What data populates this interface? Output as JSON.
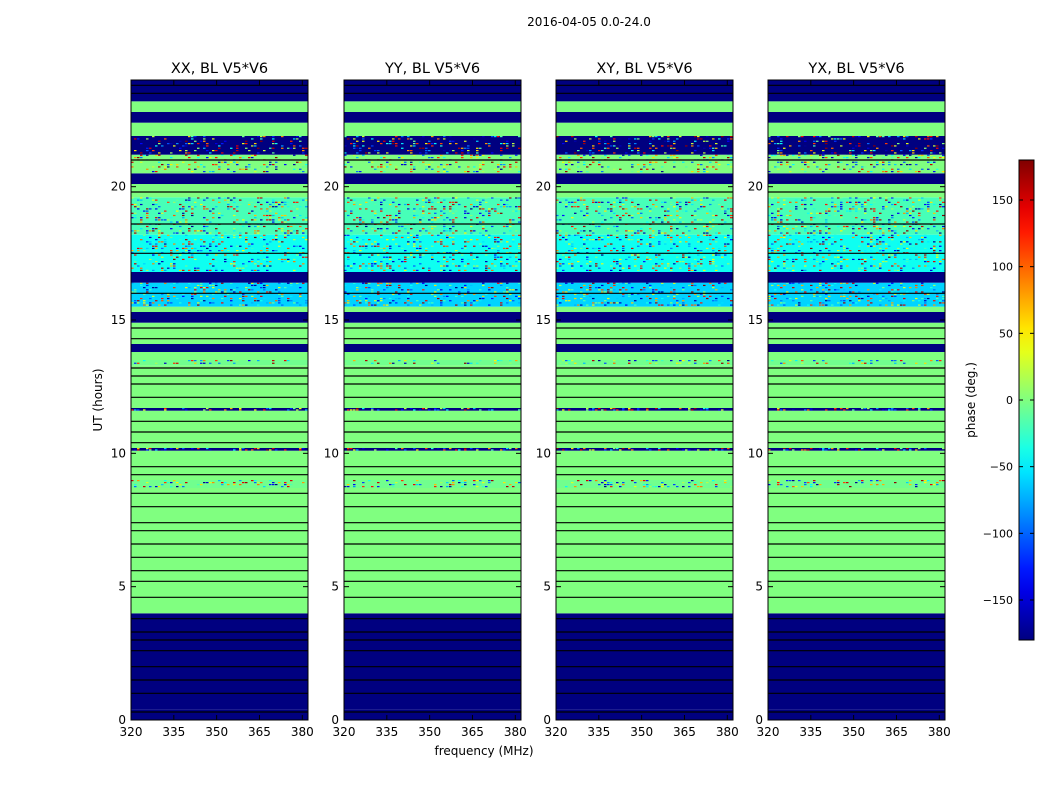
{
  "suptitle": "2016-04-05 0.0-24.0",
  "chart_data": {
    "type": "heatmap",
    "xlabel": "frequency (MHz)",
    "ylabel": "UT (hours)",
    "xlim": [
      320,
      382
    ],
    "ylim": [
      0,
      24
    ],
    "xticks": [
      320,
      335,
      350,
      365,
      380
    ],
    "yticks": [
      0,
      5,
      10,
      15,
      20
    ],
    "panels": [
      {
        "title": "XX, BL V5*V6"
      },
      {
        "title": "YY, BL V5*V6"
      },
      {
        "title": "XY, BL V5*V6"
      },
      {
        "title": "YX, BL V5*V6"
      }
    ],
    "colorbar": {
      "label": "phase (deg.)",
      "range": [
        -180,
        180
      ],
      "ticks": [
        -150,
        -100,
        -50,
        0,
        50,
        100,
        150
      ],
      "tick_labels": [
        "−150",
        "−100",
        "−50",
        "0",
        "50",
        "100",
        "150"
      ],
      "colormap": "jet"
    },
    "bands": [
      {
        "from": 0,
        "to": 0.4,
        "value": -180
      },
      {
        "from": 0.4,
        "to": 4.0,
        "value": -180
      },
      {
        "from": 4.0,
        "to": 8.7,
        "value": 0
      },
      {
        "from": 8.7,
        "to": 9.0,
        "value": -5,
        "noisy": true
      },
      {
        "from": 9.0,
        "to": 10.1,
        "value": 0
      },
      {
        "from": 10.1,
        "to": 10.2,
        "value": -180,
        "noisy": true
      },
      {
        "from": 10.2,
        "to": 11.6,
        "value": 0
      },
      {
        "from": 11.6,
        "to": 11.7,
        "value": -180,
        "noisy": true
      },
      {
        "from": 11.7,
        "to": 13.3,
        "value": 0
      },
      {
        "from": 13.3,
        "to": 13.5,
        "value": -5,
        "noisy": true
      },
      {
        "from": 13.5,
        "to": 13.8,
        "value": 0
      },
      {
        "from": 13.8,
        "to": 14.1,
        "value": -180
      },
      {
        "from": 14.1,
        "to": 14.9,
        "value": 0
      },
      {
        "from": 14.9,
        "to": 15.3,
        "value": -180
      },
      {
        "from": 15.3,
        "to": 15.5,
        "value": 0
      },
      {
        "from": 15.5,
        "to": 16.4,
        "value": -60,
        "noisy": true
      },
      {
        "from": 16.4,
        "to": 16.8,
        "value": -180
      },
      {
        "from": 16.8,
        "to": 18.2,
        "value": -40,
        "noisy": true
      },
      {
        "from": 18.2,
        "to": 19.6,
        "value": -20,
        "noisy": true
      },
      {
        "from": 19.6,
        "to": 20.1,
        "value": 0
      },
      {
        "from": 20.1,
        "to": 20.5,
        "value": -180
      },
      {
        "from": 20.5,
        "to": 21.2,
        "value": 0,
        "noisy": true
      },
      {
        "from": 21.2,
        "to": 21.9,
        "value": -180,
        "noisy": true
      },
      {
        "from": 21.9,
        "to": 22.4,
        "value": 0
      },
      {
        "from": 22.4,
        "to": 22.8,
        "value": -180
      },
      {
        "from": 22.8,
        "to": 23.2,
        "value": 0
      },
      {
        "from": 23.2,
        "to": 24.0,
        "value": -180
      }
    ],
    "gap_lines": [
      0.3,
      1.0,
      1.5,
      2.0,
      2.6,
      3.0,
      3.3,
      3.8,
      4.6,
      5.2,
      5.6,
      6.1,
      6.6,
      7.1,
      7.4,
      8.0,
      8.5,
      9.2,
      9.5,
      10.4,
      10.8,
      11.2,
      12.1,
      12.6,
      12.9,
      13.2,
      14.3,
      14.7,
      16.0,
      17.5,
      18.6,
      19.8,
      21.0,
      23.5,
      23.8
    ]
  }
}
